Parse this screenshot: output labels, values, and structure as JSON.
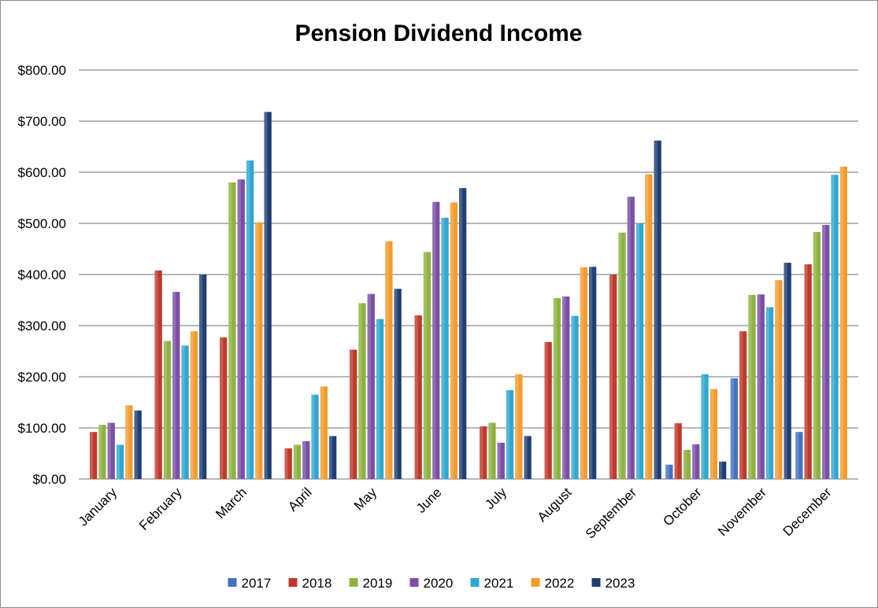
{
  "chart_data": {
    "type": "bar",
    "title": "Pension Dividend Income",
    "xlabel": "",
    "ylabel": "",
    "ylim": [
      0,
      800
    ],
    "yticks": [
      "$0.00",
      "$100.00",
      "$200.00",
      "$300.00",
      "$400.00",
      "$500.00",
      "$600.00",
      "$700.00",
      "$800.00"
    ],
    "grid": true,
    "legend_position": "bottom",
    "categories": [
      "January",
      "February",
      "March",
      "April",
      "May",
      "June",
      "July",
      "August",
      "September",
      "October",
      "November",
      "December"
    ],
    "series": [
      {
        "name": "2017",
        "color": "#4472C4",
        "values": [
          0,
          0,
          0,
          0,
          0,
          0,
          0,
          0,
          0,
          28,
          197,
          92
        ]
      },
      {
        "name": "2018",
        "color": "#C0392B",
        "values": [
          92,
          408,
          277,
          60,
          253,
          320,
          103,
          268,
          400,
          109,
          289,
          420
        ]
      },
      {
        "name": "2019",
        "color": "#8DB33F",
        "values": [
          106,
          270,
          580,
          67,
          344,
          444,
          110,
          354,
          482,
          57,
          360,
          483
        ]
      },
      {
        "name": "2020",
        "color": "#7B4FA6",
        "values": [
          110,
          366,
          586,
          74,
          362,
          542,
          71,
          357,
          552,
          68,
          361,
          497
        ]
      },
      {
        "name": "2021",
        "color": "#2EA8D0",
        "values": [
          67,
          261,
          623,
          165,
          313,
          511,
          174,
          319,
          500,
          205,
          336,
          595
        ]
      },
      {
        "name": "2022",
        "color": "#F39C2E",
        "values": [
          144,
          289,
          502,
          181,
          465,
          541,
          205,
          414,
          596,
          176,
          389,
          611
        ]
      },
      {
        "name": "2023",
        "color": "#1F3F73",
        "values": [
          134,
          400,
          718,
          84,
          372,
          569,
          84,
          415,
          662,
          34,
          423,
          0
        ]
      }
    ]
  }
}
